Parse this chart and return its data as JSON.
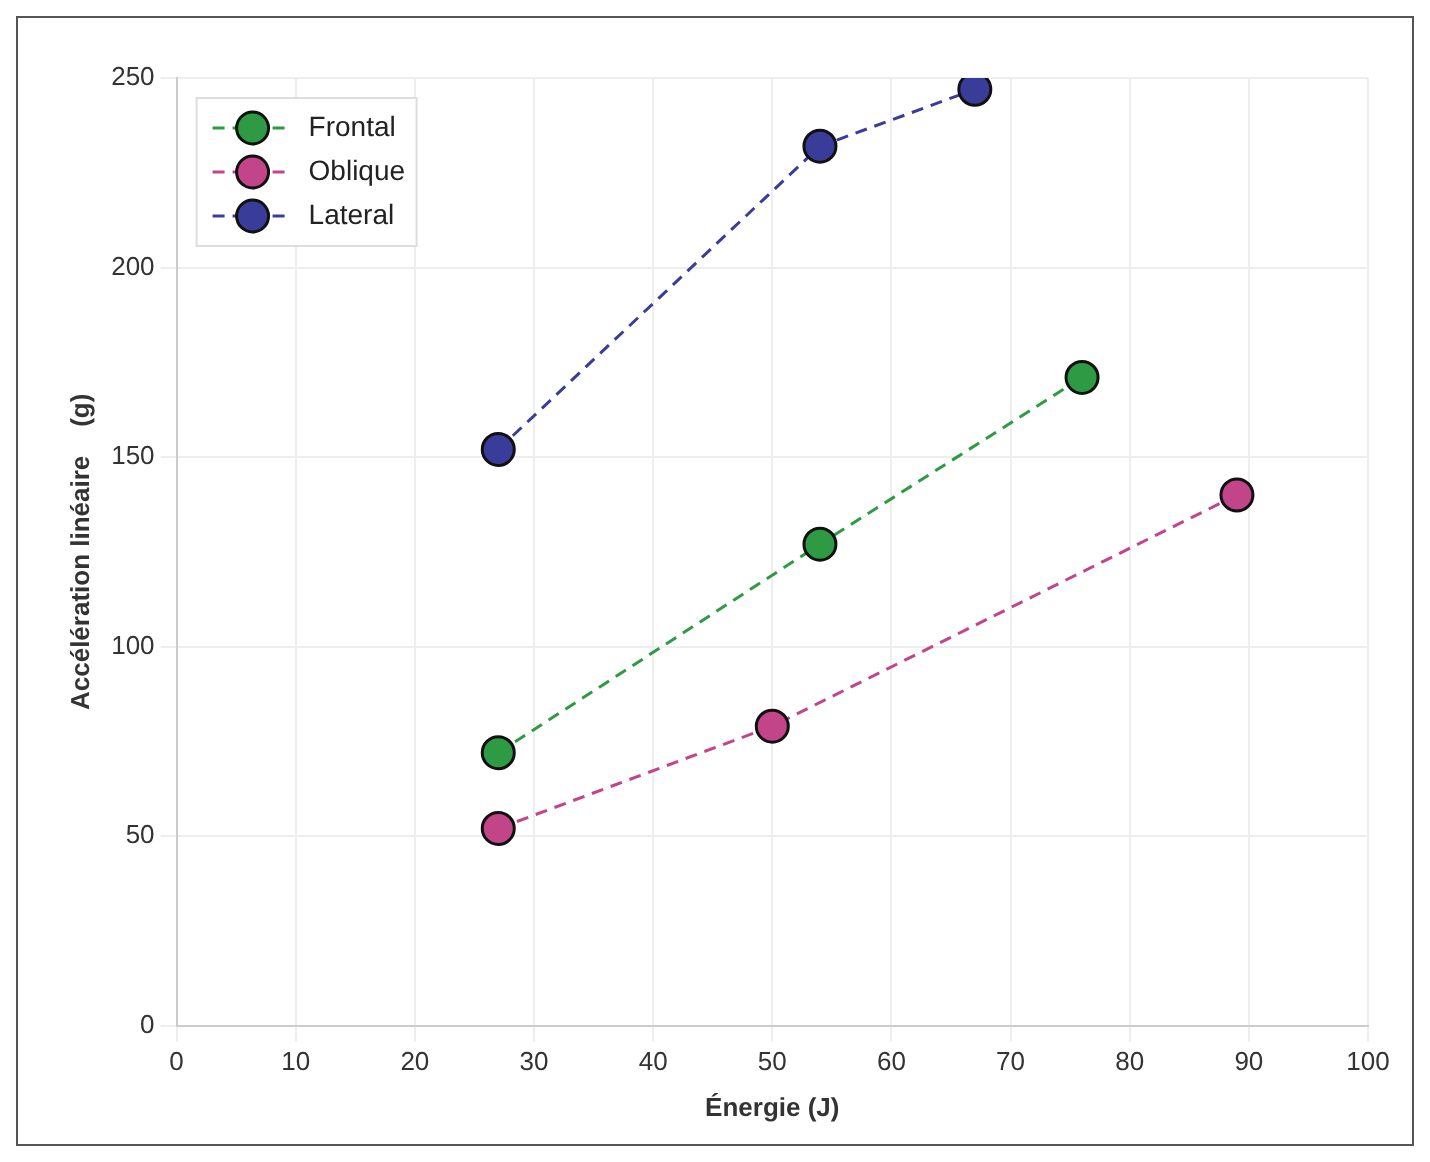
{
  "chart_data": {
    "type": "line",
    "xlabel": "Énergie (J)",
    "ylabel": "Accélération linéaire    (g)",
    "xlim": [
      0,
      100
    ],
    "xticks": [
      0,
      10,
      20,
      30,
      40,
      50,
      60,
      70,
      80,
      90,
      100
    ],
    "ylim": [
      0,
      250
    ],
    "yticks": [
      0,
      50,
      100,
      150,
      200,
      250
    ],
    "grid": true,
    "legend": "top left",
    "marker": "circle",
    "line_style": "dashed",
    "series": [
      {
        "name": "Frontal",
        "color": "#2e9a44",
        "x": [
          27,
          54,
          76
        ],
        "values": [
          72,
          127,
          171
        ]
      },
      {
        "name": "Oblique",
        "color": "#c2458a",
        "x": [
          27,
          50,
          89
        ],
        "values": [
          52,
          79,
          140
        ]
      },
      {
        "name": "Lateral",
        "color": "#3a3c9a",
        "x": [
          27,
          54,
          67
        ],
        "values": [
          152,
          232,
          247
        ]
      }
    ]
  }
}
